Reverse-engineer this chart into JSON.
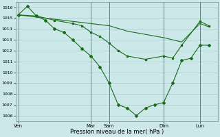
{
  "bg_color": "#cce8e8",
  "grid_color": "#aacccc",
  "line_color": "#1a6b1a",
  "marker_color": "#1a6b1a",
  "xlabel": "Pression niveau de la mer( hPa )",
  "ylim": [
    1005.5,
    1016.5
  ],
  "yticks": [
    1006,
    1007,
    1008,
    1009,
    1010,
    1011,
    1012,
    1013,
    1014,
    1015,
    1016
  ],
  "xtick_labels": [
    "Ven",
    "Mar",
    "Sam",
    "Dim",
    "Lun"
  ],
  "xtick_positions": [
    0,
    8,
    10,
    16,
    20
  ],
  "xlim": [
    -0.3,
    22
  ],
  "series1_x": [
    0,
    1,
    2,
    3,
    4,
    5,
    6,
    7,
    8,
    9,
    10,
    11,
    12,
    13,
    14,
    15,
    16,
    17,
    18,
    19,
    20,
    21
  ],
  "series1_y": [
    1015.3,
    1016.1,
    1015.2,
    1014.8,
    1014.0,
    1013.7,
    1013.0,
    1012.2,
    1011.5,
    1010.5,
    1009.0,
    1007.0,
    1006.7,
    1006.0,
    1006.7,
    1007.0,
    1007.2,
    1009.0,
    1011.1,
    1011.3,
    1012.5,
    1012.5
  ],
  "series2_x": [
    0,
    2,
    4,
    6,
    7,
    8,
    9,
    10,
    11,
    12,
    14,
    16,
    17,
    18,
    20,
    21
  ],
  "series2_y": [
    1015.3,
    1015.2,
    1014.8,
    1014.5,
    1014.3,
    1013.7,
    1013.3,
    1012.7,
    1012.0,
    1011.5,
    1011.2,
    1011.5,
    1011.3,
    1012.5,
    1014.7,
    1014.3
  ],
  "series3_x": [
    0,
    2,
    4,
    6,
    8,
    10,
    12,
    14,
    16,
    18,
    20,
    21
  ],
  "series3_y": [
    1015.3,
    1015.1,
    1014.9,
    1014.7,
    1014.5,
    1014.3,
    1013.8,
    1013.5,
    1013.2,
    1012.8,
    1014.5,
    1014.2
  ]
}
